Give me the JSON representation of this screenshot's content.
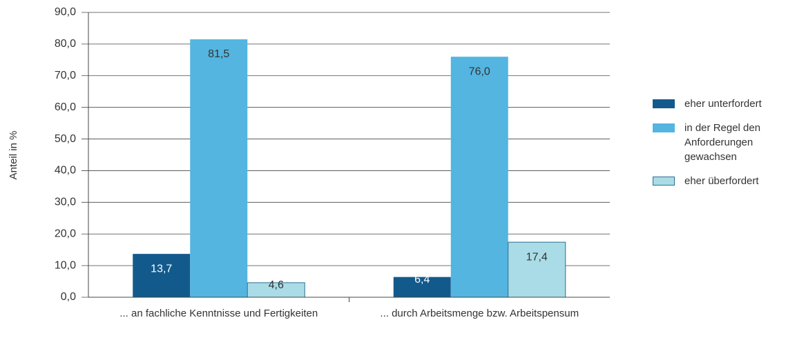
{
  "chart_data": {
    "type": "bar",
    "y_axis_label": "Anteil in %",
    "categories": [
      "... an fachliche Kenntnisse und Fertigkeiten",
      "... durch Arbeitsmenge bzw. Arbeitspensum"
    ],
    "series": [
      {
        "name": "eher unterfordert",
        "color": "#135a8c",
        "values": [
          13.7,
          6.4
        ],
        "value_labels": [
          "13,7",
          "6,4"
        ]
      },
      {
        "name": "in der Regel den Anforderungen gewachsen",
        "color": "#53b5e0",
        "values": [
          81.5,
          76.0
        ],
        "value_labels": [
          "81,5",
          "76,0"
        ]
      },
      {
        "name": "eher überfordert",
        "color": "#a9dce6",
        "values": [
          4.6,
          17.4
        ],
        "value_labels": [
          "4,6",
          "17,4"
        ]
      }
    ],
    "ylim": [
      0,
      90
    ],
    "yticks": [
      {
        "value": 0,
        "label": "0,0"
      },
      {
        "value": 10,
        "label": "10,0"
      },
      {
        "value": 20,
        "label": "20,0"
      },
      {
        "value": 30,
        "label": "30,0"
      },
      {
        "value": 40,
        "label": "40,0"
      },
      {
        "value": 50,
        "label": "50,0"
      },
      {
        "value": 60,
        "label": "60,0"
      },
      {
        "value": 70,
        "label": "70,0"
      },
      {
        "value": 80,
        "label": "80,0"
      },
      {
        "value": 90,
        "label": "90,0"
      }
    ],
    "grid": true,
    "legend": "right"
  }
}
